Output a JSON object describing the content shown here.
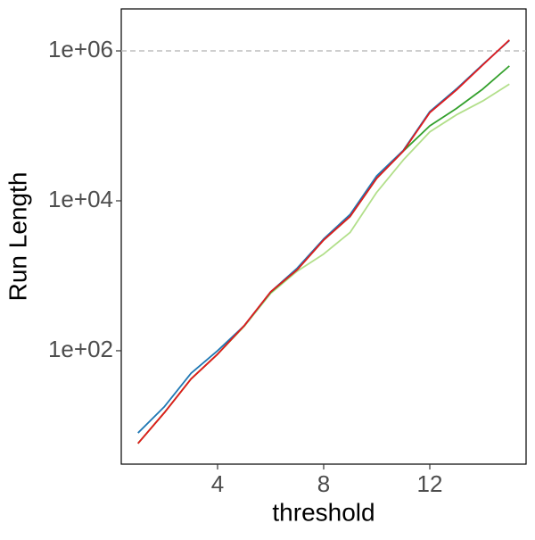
{
  "chart_data": {
    "type": "line",
    "x_label": "threshold",
    "y_label": "Run Length",
    "x": [
      1,
      2,
      3,
      4,
      5,
      6,
      7,
      8,
      9,
      10,
      11,
      12,
      13,
      14,
      15
    ],
    "series": [
      {
        "color": "#b2df8a",
        "values": [
          5.8,
          15,
          42,
          90,
          210,
          580,
          1150,
          1950,
          3800,
          13000,
          35000,
          83000,
          140000,
          215000,
          360000
        ]
      },
      {
        "color": "#33a02c",
        "values": [
          5.8,
          15,
          42,
          90,
          215,
          600,
          1200,
          3000,
          6200,
          20000,
          46000,
          100000,
          170000,
          310000,
          630000
        ]
      },
      {
        "color": "#1f78b4",
        "values": [
          8,
          18,
          50,
          100,
          215,
          610,
          1260,
          3100,
          6600,
          21500,
          47000,
          155000,
          310000,
          660000,
          1380000
        ]
      },
      {
        "color": "#e31a1c",
        "values": [
          5.8,
          15,
          42,
          90,
          215,
          610,
          1200,
          3000,
          6200,
          20000,
          46000,
          150000,
          300000,
          650000,
          1400000
        ]
      }
    ],
    "xlim": [
      0.37,
      15.63
    ],
    "xticks": [
      4,
      8,
      12
    ],
    "ylim": [
      3.07,
      3630000
    ],
    "log_y": true,
    "yticks": [
      {
        "value": 100,
        "label": "1e+02"
      },
      {
        "value": 10000,
        "label": "1e+04"
      },
      {
        "value": 1000000,
        "label": "1e+06"
      }
    ],
    "reference_line": 1000000,
    "reference_color": "#bebebe"
  }
}
